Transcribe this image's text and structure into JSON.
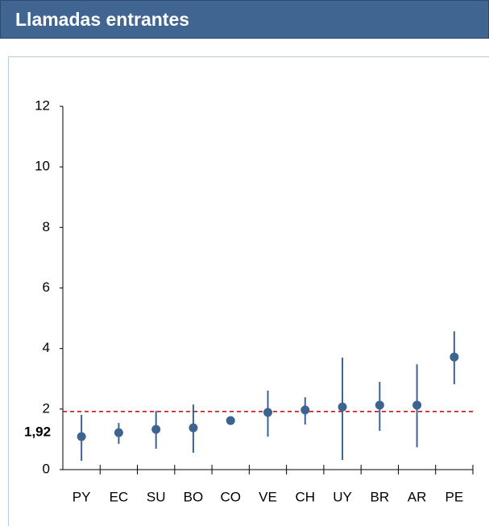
{
  "header": {
    "title": "Llamadas entrantes"
  },
  "chart_data": {
    "type": "dot",
    "categories": [
      "PY",
      "EC",
      "SU",
      "BO",
      "CO",
      "VE",
      "CH",
      "UY",
      "BR",
      "AR",
      "PE"
    ],
    "values": [
      1.09,
      1.22,
      1.33,
      1.38,
      1.62,
      1.89,
      1.97,
      2.07,
      2.13,
      2.13,
      3.72
    ],
    "low": [
      0.29,
      0.85,
      0.69,
      0.56,
      null,
      1.09,
      1.49,
      0.32,
      1.28,
      0.74,
      2.82
    ],
    "high": [
      1.81,
      1.54,
      1.94,
      2.15,
      null,
      2.61,
      2.39,
      3.7,
      2.9,
      3.48,
      4.57
    ],
    "color": "#3d6391",
    "ylim": [
      0,
      12
    ],
    "yticks": [
      0,
      2,
      4,
      6,
      8,
      10,
      12
    ],
    "reference_line": {
      "value": 1.92,
      "label": "1,92",
      "color": "#c00000"
    }
  }
}
